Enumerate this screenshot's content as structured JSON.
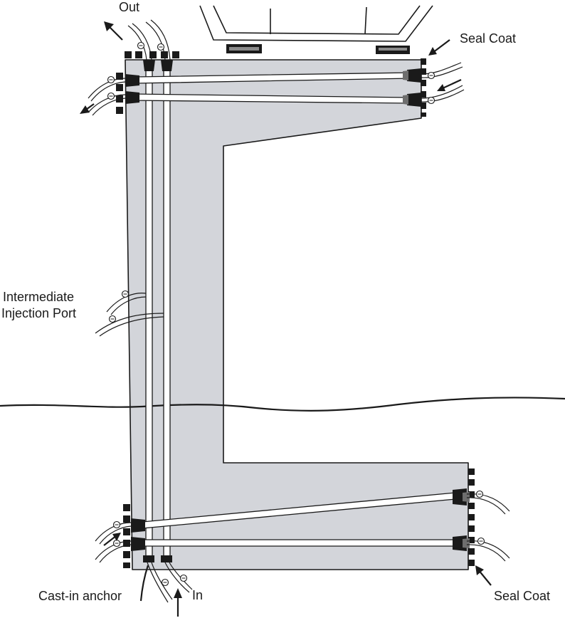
{
  "diagram": {
    "labels": {
      "out": "Out",
      "in": "In",
      "seal_coat_top": "Seal Coat",
      "seal_coat_bottom": "Seal Coat",
      "intermediate_port_line1": "Intermediate",
      "intermediate_port_line2": "Injection Port",
      "cast_in_anchor": "Cast-in anchor"
    },
    "colors": {
      "concrete": "#d3d5da",
      "line": "#1a1a1a",
      "background": "#ffffff"
    }
  }
}
